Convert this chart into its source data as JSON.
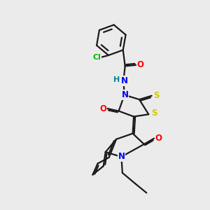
{
  "bg_color": "#ebebeb",
  "bond_color": "#1a1a1a",
  "bond_width": 1.6,
  "atom_colors": {
    "O": "#ff0000",
    "N": "#0000ff",
    "S": "#cccc00",
    "Cl": "#00bb00",
    "H": "#008888"
  },
  "font_size": 8.5
}
